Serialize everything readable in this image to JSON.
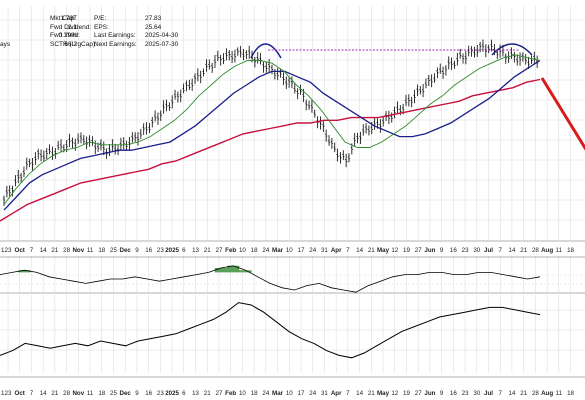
{
  "header": {
    "left_labels": [
      "Mkt Cap:",
      "Fwd Dividend:",
      "Fwd Yield:",
      "SCTR (LrgCap):"
    ],
    "left_values": [
      "1.79T",
      "2.1",
      "0.29%",
      "66.2"
    ],
    "right_labels": [
      "P/E:",
      "EPS:",
      "Last Earnings:",
      "Next Earnings:"
    ],
    "right_values": [
      "27.83",
      "25.64",
      "2025-04-30",
      "2025-07-30"
    ],
    "edge_label": "ays"
  },
  "colors": {
    "price": "#000000",
    "ma_short": "#2e8b2e",
    "ma_mid": "#1b1f8a",
    "ma_long": "#c8103c",
    "pattern_arcs": "#1b1f8a",
    "neckline": "#9b2cbf",
    "forecast_arrow": "#d81b1b",
    "oscillator_fill": "#3c8f3c",
    "grid": "#d8d8d8"
  },
  "x_axis": {
    "ticks": [
      {
        "label": "23",
        "bold": false
      },
      {
        "label": "Oct",
        "bold": true
      },
      {
        "label": "7",
        "bold": false
      },
      {
        "label": "14",
        "bold": false
      },
      {
        "label": "21",
        "bold": false
      },
      {
        "label": "28",
        "bold": false
      },
      {
        "label": "Nov",
        "bold": true
      },
      {
        "label": "11",
        "bold": false
      },
      {
        "label": "18",
        "bold": false
      },
      {
        "label": "25",
        "bold": false
      },
      {
        "label": "Dec",
        "bold": true
      },
      {
        "label": "9",
        "bold": false
      },
      {
        "label": "16",
        "bold": false
      },
      {
        "label": "23",
        "bold": false
      },
      {
        "label": "2025",
        "bold": true
      },
      {
        "label": "6",
        "bold": false
      },
      {
        "label": "13",
        "bold": false
      },
      {
        "label": "21",
        "bold": false
      },
      {
        "label": "27",
        "bold": false
      },
      {
        "label": "Feb",
        "bold": true
      },
      {
        "label": "10",
        "bold": false
      },
      {
        "label": "18",
        "bold": false
      },
      {
        "label": "24",
        "bold": false
      },
      {
        "label": "Mar",
        "bold": true
      },
      {
        "label": "10",
        "bold": false
      },
      {
        "label": "17",
        "bold": false
      },
      {
        "label": "24",
        "bold": false
      },
      {
        "label": "31",
        "bold": false
      },
      {
        "label": "Apr",
        "bold": true
      },
      {
        "label": "7",
        "bold": false
      },
      {
        "label": "14",
        "bold": false
      },
      {
        "label": "21",
        "bold": false
      },
      {
        "label": "May",
        "bold": true
      },
      {
        "label": "12",
        "bold": false
      },
      {
        "label": "19",
        "bold": false
      },
      {
        "label": "27",
        "bold": false
      },
      {
        "label": "Jun",
        "bold": true
      },
      {
        "label": "9",
        "bold": false
      },
      {
        "label": "16",
        "bold": false
      },
      {
        "label": "23",
        "bold": false
      },
      {
        "label": "30",
        "bold": false
      },
      {
        "label": "Jul",
        "bold": true
      },
      {
        "label": "7",
        "bold": false
      },
      {
        "label": "14",
        "bold": false
      },
      {
        "label": "21",
        "bold": false
      },
      {
        "label": "28",
        "bold": false
      },
      {
        "label": "Aug",
        "bold": true
      },
      {
        "label": "11",
        "bold": false
      },
      {
        "label": "18",
        "bold": false
      }
    ],
    "first_label": "1"
  },
  "chart_data": {
    "type": "line",
    "title": "",
    "xlabel": "",
    "ylabel": "",
    "grid": true,
    "price_panel": {
      "series": [
        {
          "role": "price",
          "values": [
            180,
            186,
            192,
            196,
            197,
            199,
            201,
            202,
            200,
            198,
            199,
            201,
            204,
            208,
            213,
            217,
            221,
            225,
            229,
            232,
            233,
            234,
            232,
            229,
            226,
            223,
            219,
            213,
            206,
            198,
            194,
            203,
            206,
            208,
            211,
            214,
            218,
            222,
            226,
            229,
            232,
            234,
            236,
            235,
            233,
            232,
            231,
            231
          ]
        },
        {
          "role": "ma_short",
          "values": [
            178,
            184,
            189,
            193,
            196,
            198,
            199,
            201,
            200,
            200,
            200,
            201,
            203,
            206,
            209,
            213,
            218,
            222,
            226,
            229,
            231,
            231,
            230,
            227,
            222,
            218,
            213,
            207,
            201,
            199,
            199,
            201,
            204,
            207,
            211,
            215,
            218,
            222,
            225,
            228,
            230,
            232,
            233,
            232,
            231
          ]
        },
        {
          "role": "ma_mid",
          "values": [
            176,
            181,
            186,
            189,
            191,
            193,
            195,
            196,
            197,
            198,
            198,
            199,
            200,
            201,
            204,
            207,
            211,
            215,
            219,
            222,
            225,
            227,
            227,
            225,
            223,
            219,
            216,
            213,
            210,
            207,
            205,
            203,
            203,
            204,
            206,
            208,
            211,
            214,
            217,
            221,
            225,
            228,
            231
          ]
        },
        {
          "role": "ma_long",
          "values": [
            172,
            175,
            178,
            180,
            182,
            184,
            186,
            187,
            188,
            189,
            190,
            191,
            193,
            194,
            196,
            198,
            200,
            202,
            204,
            205,
            206,
            207,
            208,
            208,
            209,
            209,
            210,
            210,
            210,
            211,
            212,
            213,
            214,
            215,
            216,
            218,
            219,
            220,
            221,
            223,
            224
          ]
        }
      ]
    },
    "oscillator_panel": {
      "values": [
        2,
        3,
        4,
        3,
        1,
        0,
        -1,
        -2,
        -1,
        0,
        0,
        1,
        0,
        -1,
        0,
        1,
        2,
        3,
        5,
        6,
        4,
        1,
        -2,
        -4,
        -5,
        -3,
        -2,
        -4,
        -5,
        -6,
        -3,
        -1,
        1,
        2,
        2,
        3,
        3,
        2,
        2,
        3,
        3,
        2,
        1,
        0,
        1
      ]
    },
    "momentum_panel": {
      "values": [
        12,
        14,
        17,
        16,
        15,
        16,
        17,
        16,
        18,
        17,
        16,
        18,
        19,
        20,
        21,
        23,
        25,
        27,
        30,
        34,
        33,
        30,
        26,
        22,
        19,
        17,
        14,
        12,
        11,
        13,
        16,
        19,
        22,
        24,
        26,
        28,
        29,
        30,
        31,
        32,
        32,
        31,
        30,
        29
      ]
    }
  }
}
